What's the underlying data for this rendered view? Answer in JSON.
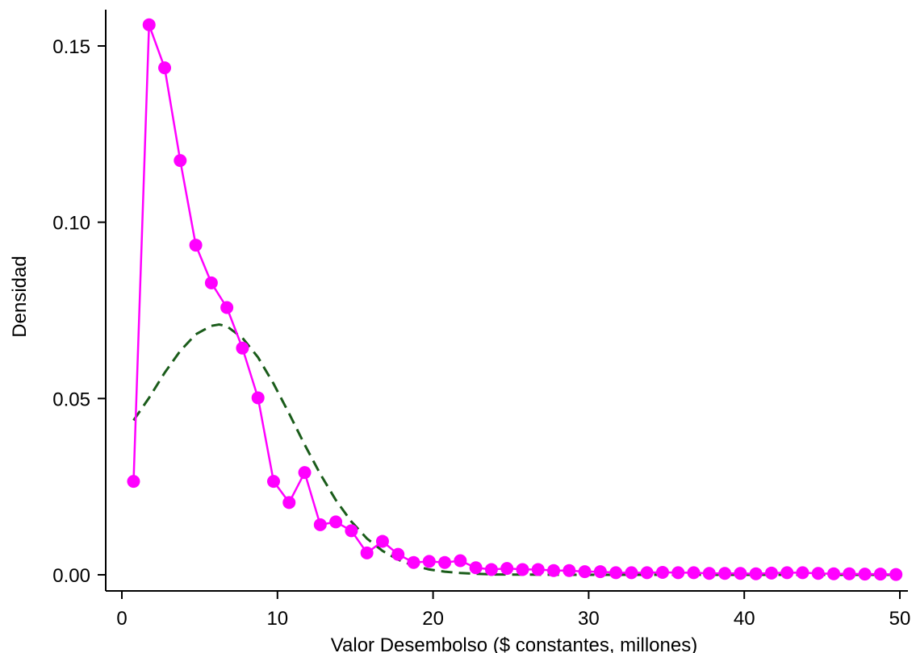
{
  "chart_data": {
    "type": "line",
    "xlabel": "Valor Desembolso ($ constantes, millones)",
    "ylabel": "Densidad",
    "xlim": [
      0,
      50
    ],
    "ylim": [
      0,
      0.15
    ],
    "xticks": [
      0,
      10,
      20,
      30,
      40,
      50
    ],
    "xtick_labels": [
      "0",
      "10",
      "20",
      "30",
      "40",
      "50"
    ],
    "yticks": [
      0,
      0.05,
      0.1,
      0.15
    ],
    "ytick_labels": [
      "0.00",
      "0.05",
      "0.10",
      "0.15"
    ],
    "grid": false,
    "series": [
      {
        "style": "line-markers",
        "color": "#ff00ff",
        "x": [
          0.75,
          1.75,
          2.75,
          3.75,
          4.75,
          5.75,
          6.75,
          7.75,
          8.75,
          9.75,
          10.75,
          11.75,
          12.75,
          13.75,
          14.75,
          15.75,
          16.75,
          17.75,
          18.75,
          19.75,
          20.75,
          21.75,
          22.75,
          23.75,
          24.75,
          25.75,
          26.75,
          27.75,
          28.75,
          29.75,
          30.75,
          31.75,
          32.75,
          33.75,
          34.75,
          35.75,
          36.75,
          37.75,
          38.75,
          39.75,
          40.75,
          41.75,
          42.75,
          43.75,
          44.75,
          45.75,
          46.75,
          47.75,
          48.75,
          49.75
        ],
        "y": [
          0.0265,
          0.156,
          0.1438,
          0.1175,
          0.0935,
          0.0828,
          0.0758,
          0.0643,
          0.0502,
          0.0265,
          0.0205,
          0.029,
          0.0142,
          0.015,
          0.0125,
          0.0062,
          0.0095,
          0.0058,
          0.0035,
          0.0038,
          0.0035,
          0.004,
          0.002,
          0.0015,
          0.0018,
          0.0015,
          0.0015,
          0.0012,
          0.0012,
          0.0009,
          0.0009,
          0.0006,
          0.0006,
          0.0006,
          0.0007,
          0.0006,
          0.0006,
          0.0004,
          0.0004,
          0.0004,
          0.0003,
          0.0005,
          0.0006,
          0.0006,
          0.0004,
          0.0003,
          0.0003,
          0.0002,
          0.0002,
          0.0001
        ]
      },
      {
        "style": "dashed",
        "color": "#1a5c1a",
        "x": [
          0.75,
          1.75,
          2.75,
          3.75,
          4.75,
          5.75,
          6.25,
          6.75,
          7.75,
          8.75,
          9.75,
          10.75,
          11.75,
          12.75,
          13.75,
          14.75,
          15.75,
          16.75,
          17.75,
          18.75,
          19.75,
          20.75,
          21.75,
          22.75,
          24,
          26,
          28,
          30,
          35,
          40,
          45,
          50
        ],
        "y": [
          0.0438,
          0.0502,
          0.0573,
          0.0635,
          0.0682,
          0.0706,
          0.071,
          0.0705,
          0.0672,
          0.0617,
          0.0542,
          0.0457,
          0.0369,
          0.0286,
          0.0212,
          0.0151,
          0.0103,
          0.0068,
          0.0043,
          0.0026,
          0.0015,
          0.0009,
          0.0005,
          0.0003,
          0.0001,
          5e-05,
          2e-05,
          0.0,
          0.0,
          0.0,
          0.0,
          0.0
        ]
      }
    ]
  }
}
